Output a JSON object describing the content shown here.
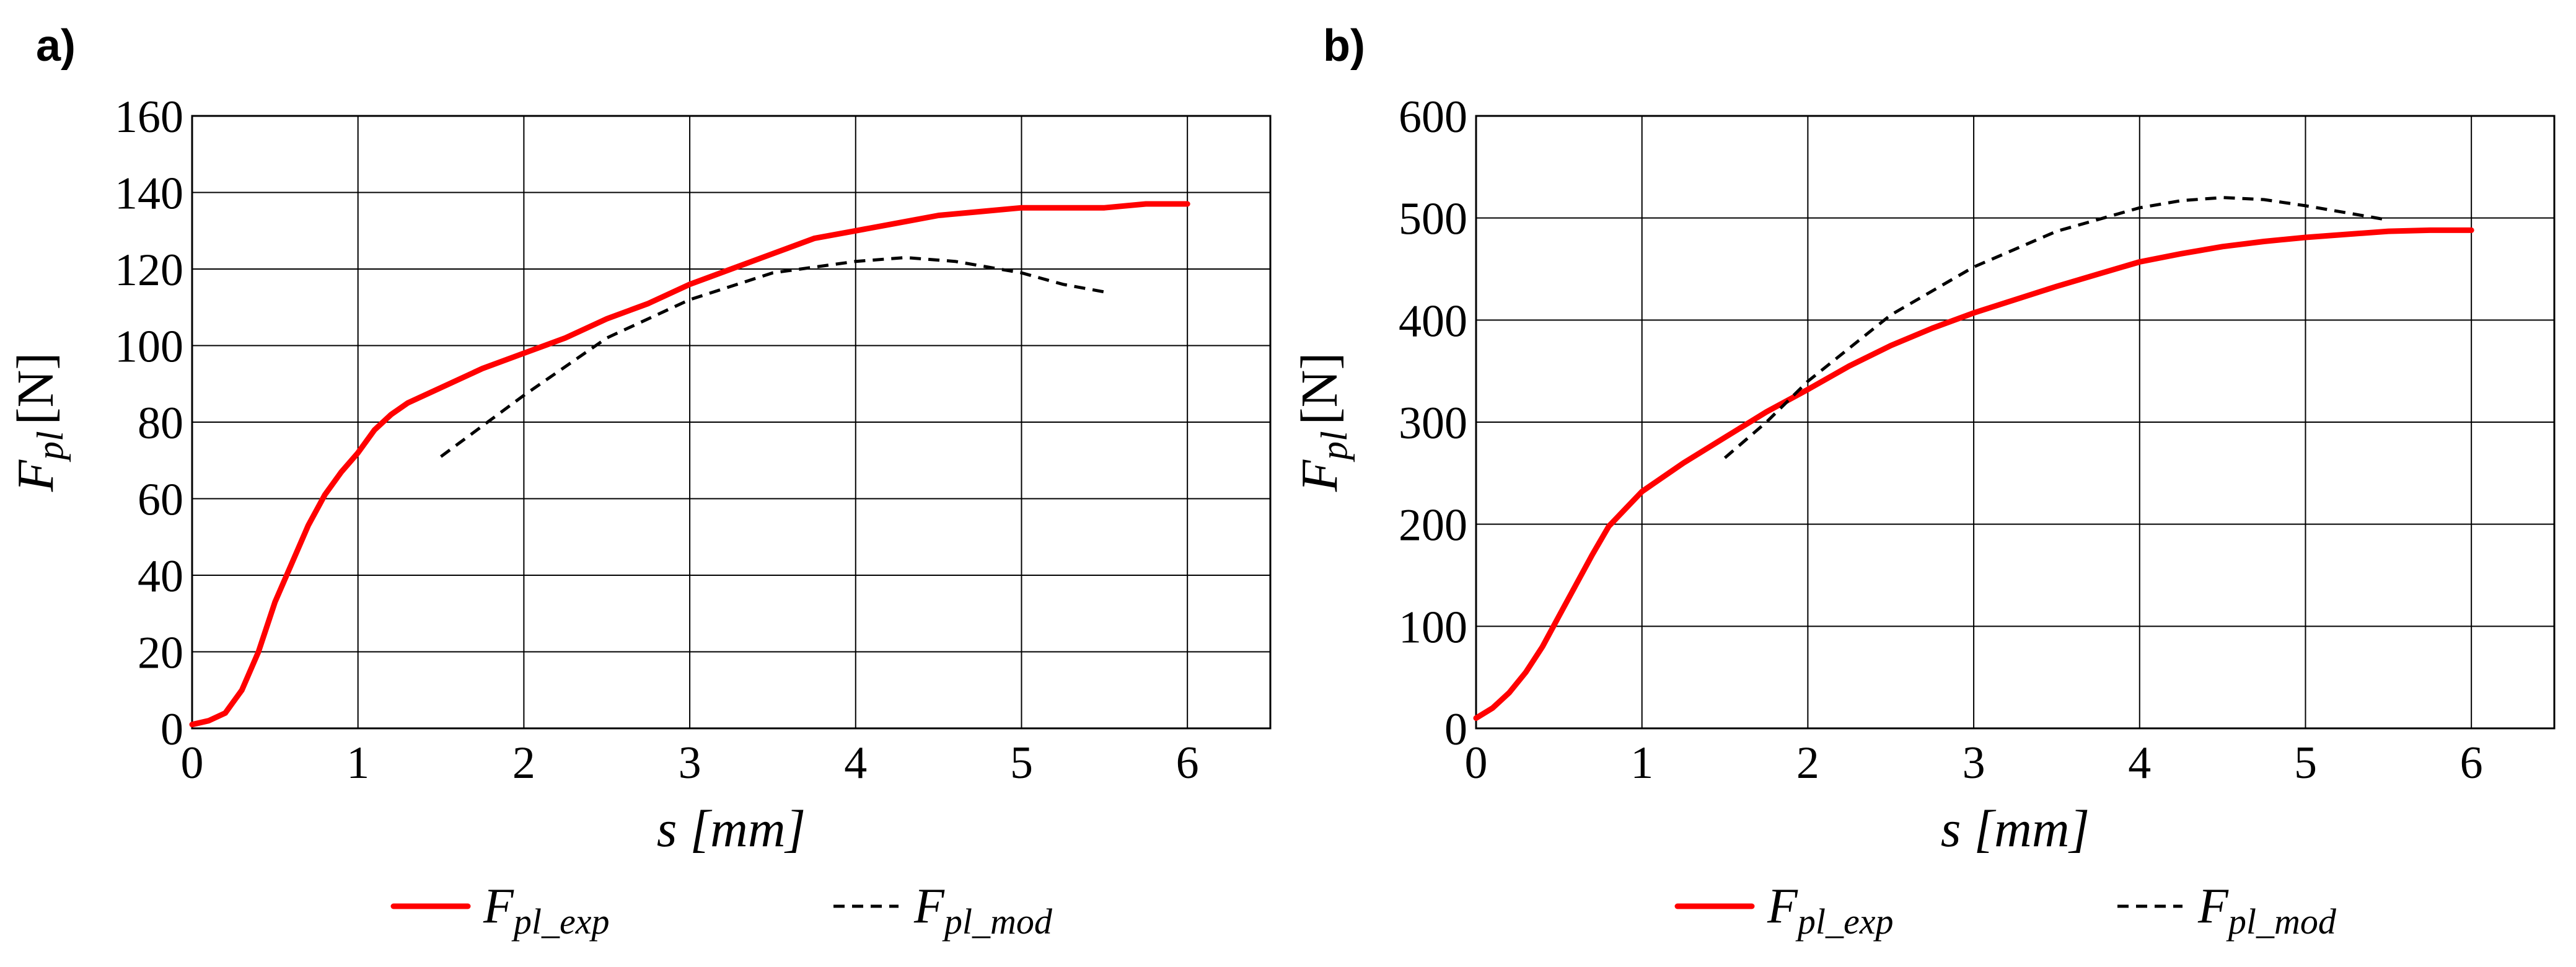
{
  "chart_data": [
    {
      "panel": "a)",
      "type": "line",
      "xlabel": "s [mm]",
      "ylabel": "F",
      "ylabel_sub": "pl",
      "ylabel_unit": "[N]",
      "xlim": [
        0,
        6.5
      ],
      "ylim": [
        0,
        160
      ],
      "xticks": [
        0,
        1,
        2,
        3,
        4,
        5,
        6
      ],
      "yticks": [
        0,
        20,
        40,
        60,
        80,
        100,
        120,
        140,
        160
      ],
      "grid": true,
      "legend_position": "bottom",
      "series": [
        {
          "name": "F",
          "name_sub": "pl_exp",
          "color": "#ff0000",
          "style": "solid",
          "x": [
            0,
            0.1,
            0.2,
            0.3,
            0.4,
            0.5,
            0.6,
            0.7,
            0.8,
            0.9,
            1.0,
            1.1,
            1.2,
            1.3,
            1.5,
            1.75,
            2.0,
            2.25,
            2.5,
            2.75,
            3.0,
            3.25,
            3.5,
            3.75,
            4.0,
            4.25,
            4.5,
            4.75,
            5.0,
            5.25,
            5.5,
            5.75,
            6.0
          ],
          "y": [
            1,
            2,
            4,
            10,
            20,
            33,
            43,
            53,
            61,
            67,
            72,
            78,
            82,
            85,
            89,
            94,
            98,
            102,
            107,
            111,
            116,
            120,
            124,
            128,
            130,
            132,
            134,
            135,
            136,
            136,
            136,
            137,
            137
          ]
        },
        {
          "name": "F",
          "name_sub": "pl_mod",
          "color": "#000000",
          "style": "dashed",
          "x": [
            1.5,
            2.0,
            2.5,
            3.0,
            3.5,
            4.0,
            4.3,
            4.6,
            5.0,
            5.25,
            5.5
          ],
          "y": [
            71,
            87,
            102,
            112,
            119,
            122,
            123,
            122,
            119,
            116,
            114
          ]
        }
      ]
    },
    {
      "panel": "b)",
      "type": "line",
      "xlabel": "s [mm]",
      "ylabel": "F",
      "ylabel_sub": "pl",
      "ylabel_unit": "[N]",
      "xlim": [
        0,
        6.5
      ],
      "ylim": [
        0,
        600
      ],
      "xticks": [
        0,
        1,
        2,
        3,
        4,
        5,
        6
      ],
      "yticks": [
        0,
        100,
        200,
        300,
        400,
        500,
        600
      ],
      "grid": true,
      "legend_position": "bottom",
      "series": [
        {
          "name": "F",
          "name_sub": "pl_exp",
          "color": "#ff0000",
          "style": "solid",
          "x": [
            0,
            0.1,
            0.2,
            0.3,
            0.4,
            0.5,
            0.6,
            0.7,
            0.8,
            0.9,
            1.0,
            1.25,
            1.5,
            1.75,
            2.0,
            2.25,
            2.5,
            2.75,
            3.0,
            3.25,
            3.5,
            3.75,
            4.0,
            4.25,
            4.5,
            4.75,
            5.0,
            5.25,
            5.5,
            5.75,
            6.0
          ],
          "y": [
            10,
            20,
            35,
            55,
            80,
            110,
            140,
            170,
            198,
            215,
            232,
            260,
            285,
            310,
            332,
            355,
            375,
            392,
            407,
            420,
            433,
            445,
            457,
            465,
            472,
            477,
            481,
            484,
            487,
            488,
            488
          ]
        },
        {
          "name": "F",
          "name_sub": "pl_mod",
          "color": "#000000",
          "style": "dashed",
          "x": [
            1.5,
            1.75,
            2.0,
            2.5,
            3.0,
            3.5,
            4.0,
            4.25,
            4.5,
            4.75,
            5.0,
            5.25,
            5.5
          ],
          "y": [
            265,
            300,
            340,
            405,
            452,
            487,
            510,
            517,
            520,
            518,
            512,
            505,
            498
          ]
        }
      ]
    }
  ]
}
